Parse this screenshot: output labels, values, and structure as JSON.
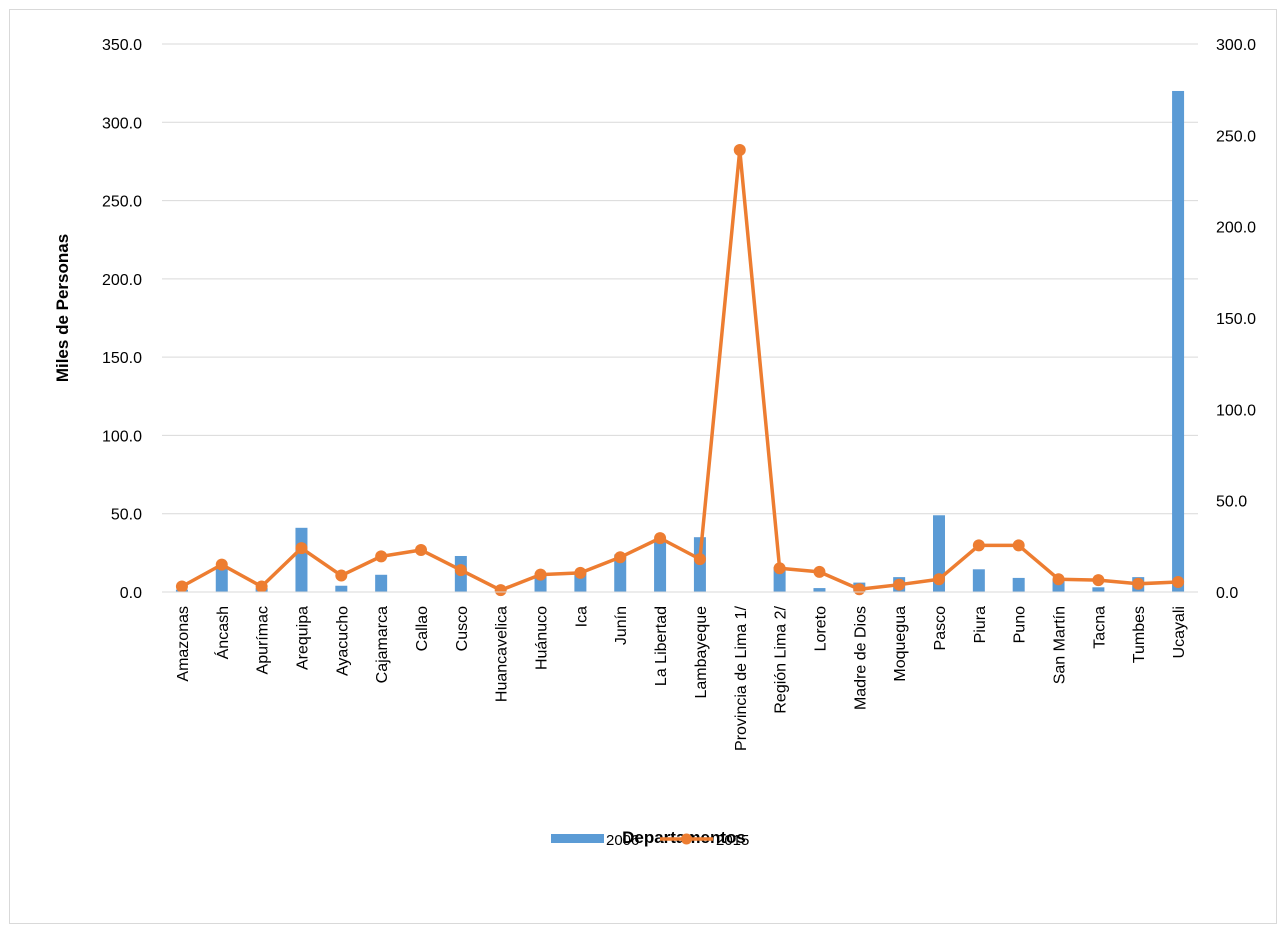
{
  "chart_data": {
    "type": "bar+line",
    "title": "",
    "xlabel": "Departamentos",
    "ylabel": "Miles de Personas",
    "y2label": "",
    "ylim": [
      0,
      350
    ],
    "y2lim": [
      0,
      300
    ],
    "yticks": [
      "0.0",
      "50.0",
      "100.0",
      "150.0",
      "200.0",
      "250.0",
      "300.0",
      "350.0"
    ],
    "y2ticks": [
      "0.0",
      "50.0",
      "100.0",
      "150.0",
      "200.0",
      "250.0",
      "300.0"
    ],
    "grid": true,
    "legend_position": "bottom",
    "categories": [
      "Amazonas",
      "Áncash",
      "Apurímac",
      "Arequipa",
      "Ayacucho",
      "Cajamarca",
      "Callao",
      "Cusco",
      "Huancavelica",
      "Huánuco",
      "Ica",
      "Junín",
      "La Libertad",
      "Lambayeque",
      "Provincia de Lima 1/",
      "Región Lima 2/",
      "Loreto",
      "Madre de Dios",
      "Moquegua",
      "Pasco",
      "Piura",
      "Puno",
      "San Martín",
      "Tacna",
      "Tumbes",
      "Ucayali"
    ],
    "series": [
      {
        "name": "2006",
        "type": "bar",
        "axis": "left",
        "color": "#5b9bd5",
        "values": [
          1.5,
          16,
          2.5,
          41,
          4,
          11,
          0,
          23,
          0,
          12,
          13,
          24,
          34,
          35,
          0,
          16,
          2.5,
          6,
          9.5,
          49,
          14.5,
          9,
          8,
          3,
          9.5,
          320
        ]
      },
      {
        "name": "2015",
        "type": "line",
        "axis": "right",
        "color": "#ed7d31",
        "values": [
          3,
          15,
          3,
          24,
          9,
          19.5,
          23,
          12,
          1,
          9.5,
          10.5,
          19,
          29.5,
          18,
          242,
          13,
          11,
          1.5,
          4,
          7,
          25.5,
          25.5,
          7,
          6.5,
          4.5,
          5.5
        ]
      }
    ]
  }
}
